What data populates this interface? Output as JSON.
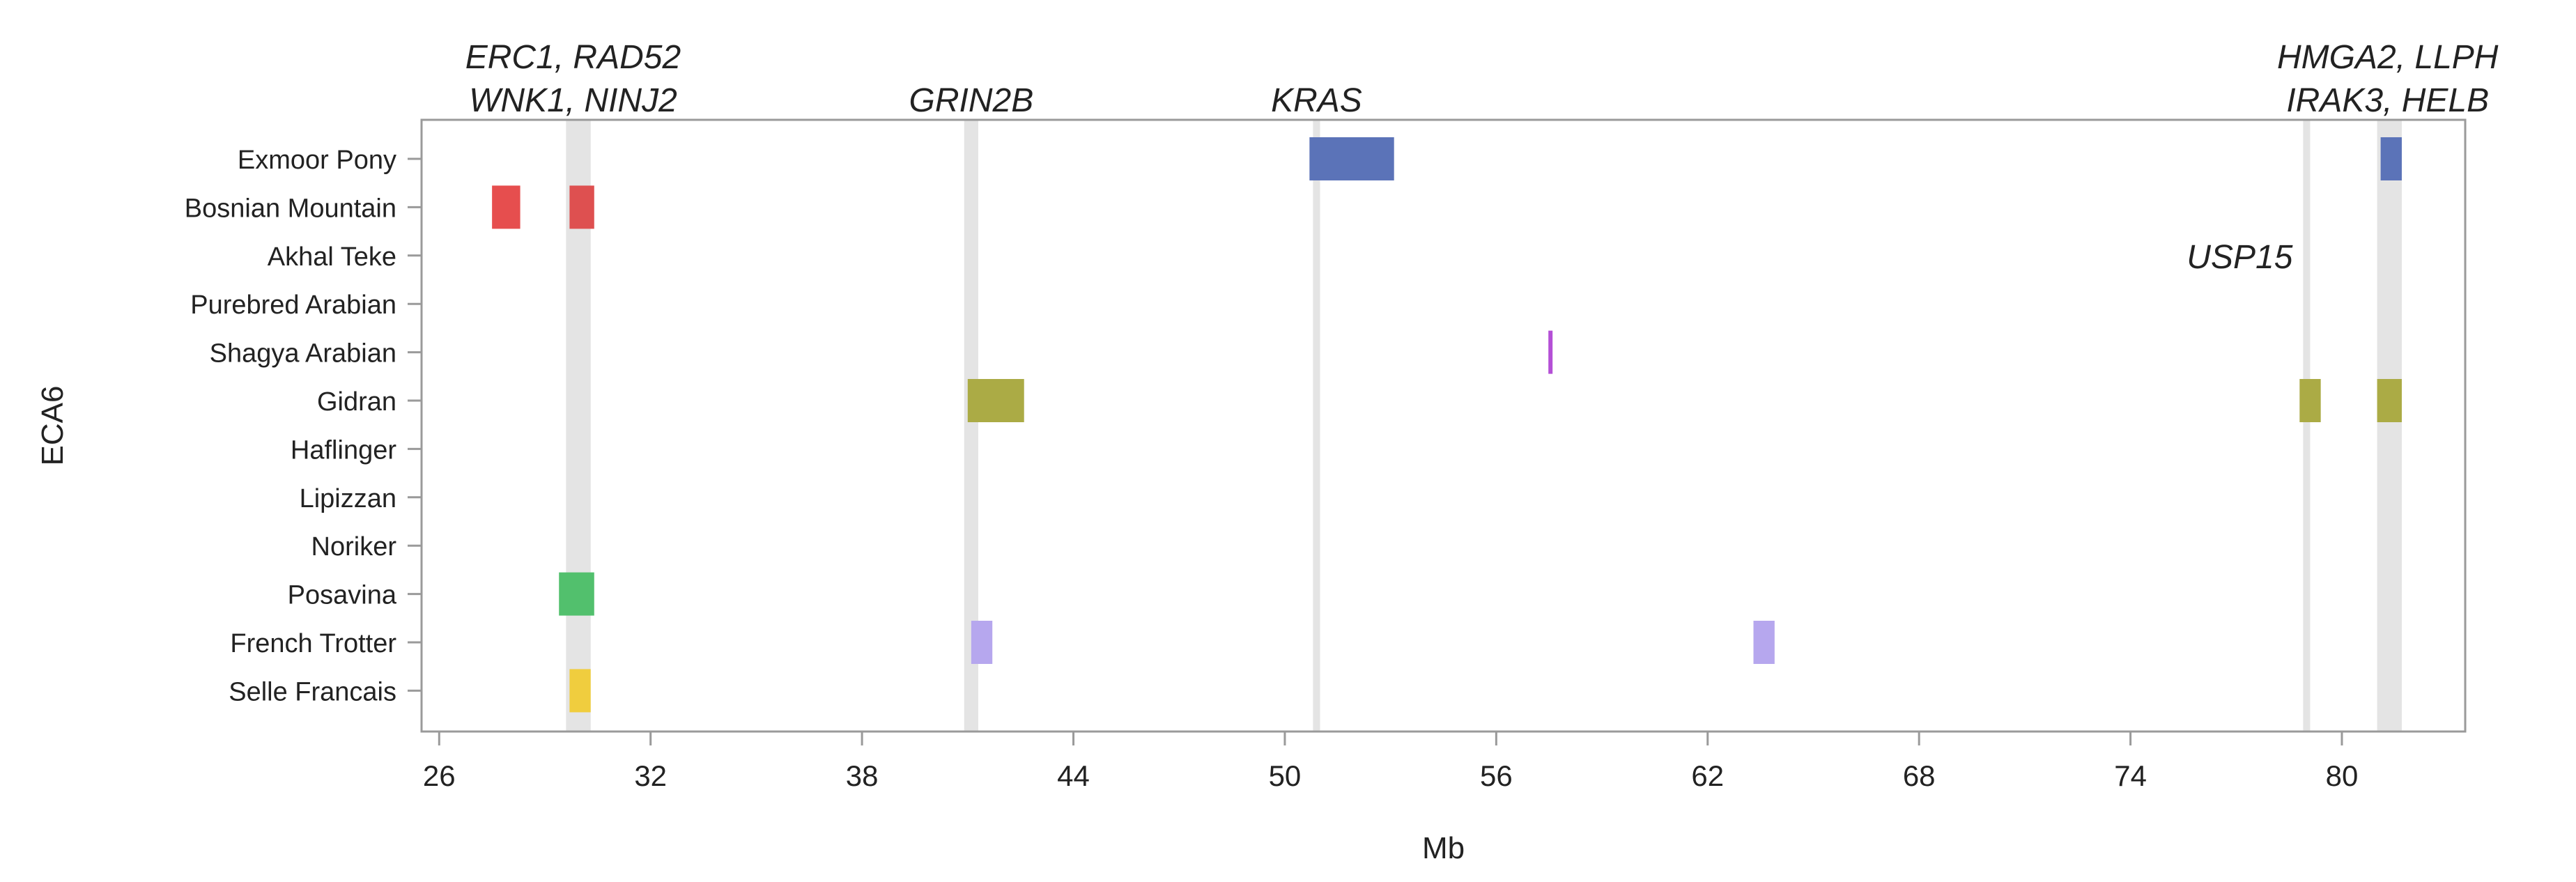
{
  "chart_data": {
    "type": "bar",
    "orientation": "horizontal-ranges",
    "xlabel": "Mb",
    "ylabel": "ECA6",
    "xlim": [
      25.5,
      83.5
    ],
    "xticks": [
      26,
      32,
      38,
      44,
      50,
      56,
      62,
      68,
      74,
      80
    ],
    "grid": false,
    "categories": [
      "Exmoor Pony",
      "Bosnian Mountain",
      "Akhal Teke",
      "Purebred Arabian",
      "Shagya Arabian",
      "Gidran",
      "Haflinger",
      "Lipizzan",
      "Noriker",
      "Posavina",
      "French Trotter",
      "Selle Francais"
    ],
    "highlight_regions": [
      {
        "start": 29.6,
        "end": 30.3
      },
      {
        "start": 40.9,
        "end": 41.3
      },
      {
        "start": 50.8,
        "end": 51.0
      },
      {
        "start": 78.9,
        "end": 79.1
      },
      {
        "start": 81.0,
        "end": 81.7
      }
    ],
    "gene_annotations": [
      {
        "lines": [
          "ERC1, RAD52",
          "WNK1, NINJ2"
        ],
        "x": 29.8
      },
      {
        "lines": [
          "GRIN2B"
        ],
        "x": 41.1
      },
      {
        "lines": [
          "KRAS"
        ],
        "x": 50.9
      },
      {
        "lines": [
          "HMGA2, LLPH",
          "IRAK3, HELB"
        ],
        "x": 81.3
      },
      {
        "lines": [
          "USP15"
        ],
        "x": 77.1
      }
    ],
    "segments": [
      {
        "category": "Exmoor Pony",
        "start": 50.7,
        "end": 53.1,
        "color": "#5b73b8"
      },
      {
        "category": "Exmoor Pony",
        "start": 81.1,
        "end": 81.7,
        "color": "#5b73b8"
      },
      {
        "category": "Bosnian Mountain",
        "start": 27.5,
        "end": 28.3,
        "color": "#e64e4e"
      },
      {
        "category": "Bosnian Mountain",
        "start": 29.7,
        "end": 30.4,
        "color": "#de5050"
      },
      {
        "category": "Shagya Arabian",
        "start": 57.48,
        "end": 57.58,
        "color": "#b44fd6"
      },
      {
        "category": "Gidran",
        "start": 41.0,
        "end": 42.6,
        "color": "#abab45"
      },
      {
        "category": "Gidran",
        "start": 78.8,
        "end": 79.4,
        "color": "#abab45"
      },
      {
        "category": "Gidran",
        "start": 81.0,
        "end": 81.7,
        "color": "#abab45"
      },
      {
        "category": "Posavina",
        "start": 29.4,
        "end": 30.4,
        "color": "#52c06d"
      },
      {
        "category": "French Trotter",
        "start": 41.1,
        "end": 41.7,
        "color": "#b6a7ee"
      },
      {
        "category": "French Trotter",
        "start": 63.3,
        "end": 63.9,
        "color": "#b6a7ee"
      },
      {
        "category": "Selle Francais",
        "start": 29.7,
        "end": 30.3,
        "color": "#f0cd3e"
      }
    ]
  }
}
